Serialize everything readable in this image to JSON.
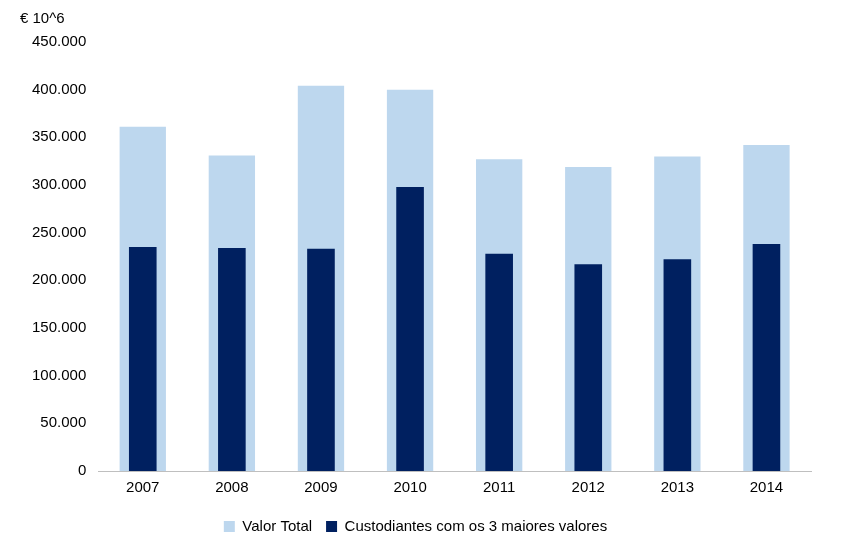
{
  "chart_data": {
    "type": "bar",
    "y_label": "€ 10^6",
    "categories": [
      "2007",
      "2008",
      "2009",
      "2010",
      "2011",
      "2012",
      "2013",
      "2014"
    ],
    "series": [
      {
        "name": "Valor Total",
        "color": "#bdd7ee",
        "values": [
          361000,
          331000,
          404000,
          400000,
          327000,
          319000,
          330000,
          342000
        ]
      },
      {
        "name": "Custodiantes com os 3 maiores valores",
        "color": "#002060",
        "values": [
          235000,
          234000,
          233000,
          298000,
          228000,
          217000,
          222000,
          238000
        ]
      }
    ],
    "ylim": [
      0,
      450000
    ],
    "yticks": [
      0,
      {
        "value": 50000,
        "label": "50.000"
      },
      {
        "value": 100000,
        "label": "100.000"
      },
      {
        "value": 150000,
        "label": "150.000"
      },
      {
        "value": 200000,
        "label": "200.000"
      },
      {
        "value": 250000,
        "label": "250.000"
      },
      {
        "value": 300000,
        "label": "300.000"
      },
      {
        "value": 350000,
        "label": "350.000"
      },
      {
        "value": 400000,
        "label": "400.000"
      },
      {
        "value": 450000,
        "label": "450.000"
      }
    ],
    "grid": false,
    "legend": "bottom"
  }
}
